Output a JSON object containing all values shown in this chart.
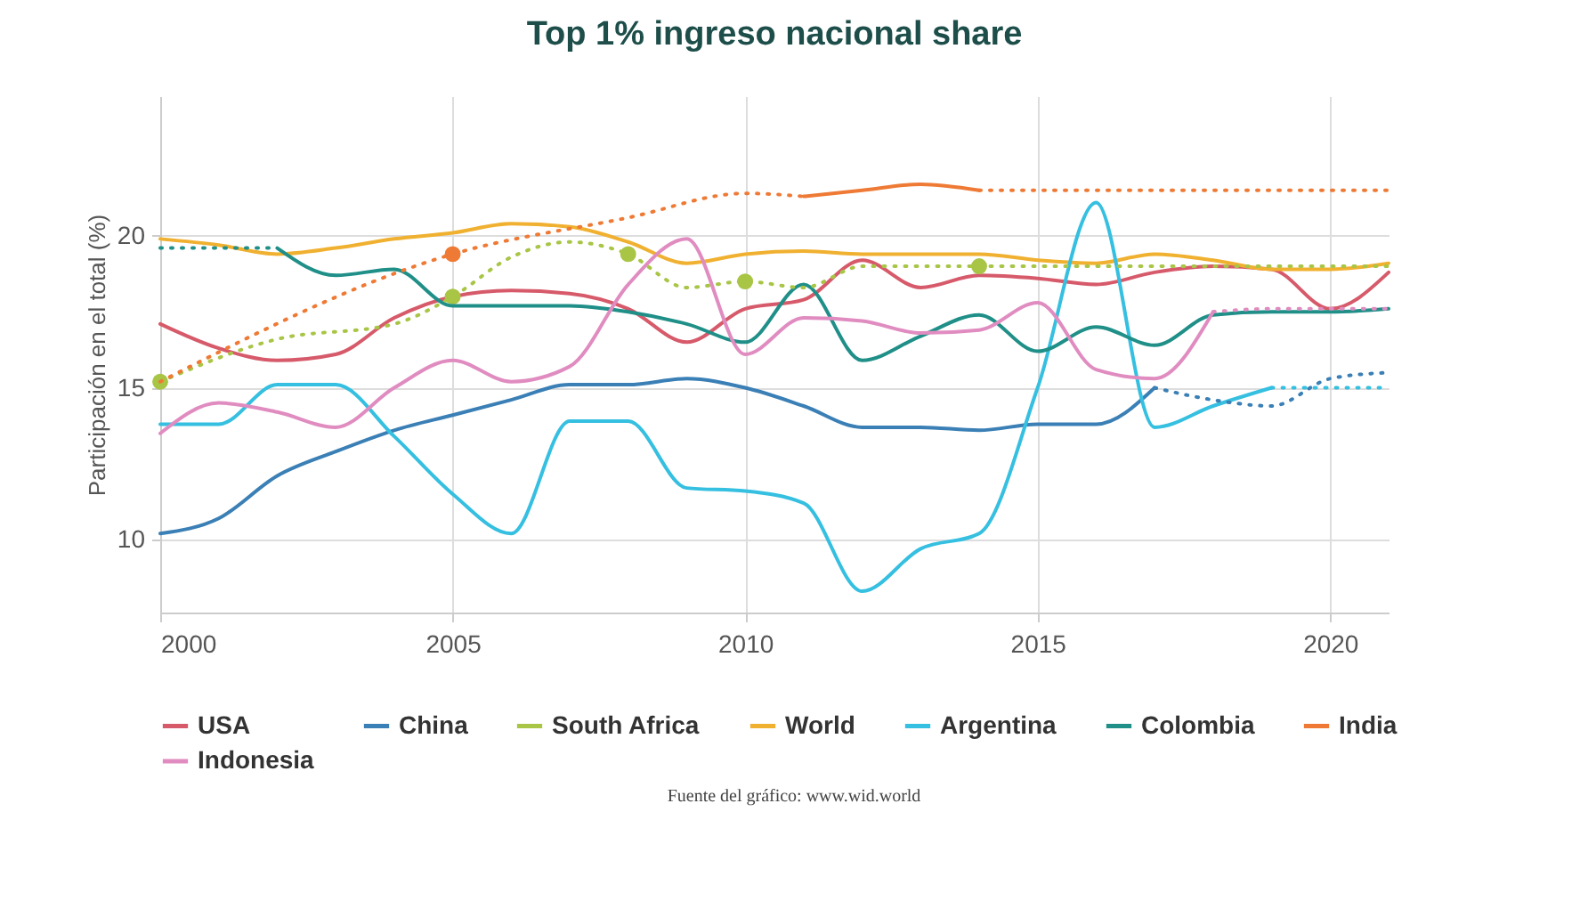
{
  "chart_data": {
    "type": "line",
    "title": "Top 1% ingreso nacional share",
    "ylabel": "Participación en el total (%)",
    "xlim": [
      2000,
      2021
    ],
    "ylim": [
      7.6,
      24.6
    ],
    "xticks": [
      2000,
      2005,
      2010,
      2015,
      2020
    ],
    "yticks": [
      10,
      15,
      20
    ],
    "grid": true,
    "legend": "bottom",
    "annotations": [
      "Fuente del gráfico: www.wid.world"
    ],
    "series": [
      {
        "name": "USA",
        "color": "#d65a6a",
        "line_style": "solid",
        "x": [
          2000,
          2001,
          2002,
          2003,
          2004,
          2005,
          2006,
          2007,
          2008,
          2009,
          2010,
          2011,
          2012,
          2013,
          2014,
          2015,
          2016,
          2017,
          2018,
          2019,
          2020,
          2021
        ],
        "values": [
          17.1,
          16.3,
          15.9,
          16.1,
          17.3,
          18.0,
          18.2,
          18.1,
          17.6,
          16.5,
          17.6,
          17.9,
          19.2,
          18.3,
          18.7,
          18.6,
          18.4,
          18.8,
          19.0,
          18.9,
          17.6,
          18.8
        ]
      },
      {
        "name": "China",
        "color": "#3a7fb5",
        "line_style": "solid",
        "x": [
          2000,
          2001,
          2002,
          2003,
          2004,
          2005,
          2006,
          2007,
          2008,
          2009,
          2010,
          2011,
          2012,
          2013,
          2014,
          2015,
          2016,
          2017
        ],
        "values": [
          10.2,
          10.7,
          12.1,
          12.9,
          13.6,
          14.1,
          14.6,
          15.1,
          15.1,
          15.3,
          15.0,
          14.4,
          13.7,
          13.7,
          13.6,
          13.8,
          13.8,
          15.0
        ]
      },
      {
        "name": "South Africa",
        "type": "scatter",
        "marker": "circle",
        "color": "#a8c545",
        "x": [
          2000,
          2005,
          2008,
          2010,
          2014
        ],
        "values": [
          15.2,
          18.0,
          19.4,
          18.5,
          19.0
        ]
      },
      {
        "name": "World",
        "color": "#f0b030",
        "line_style": "solid",
        "x": [
          2000,
          2001,
          2002,
          2003,
          2004,
          2005,
          2006,
          2007,
          2008,
          2009,
          2010,
          2011,
          2012,
          2013,
          2014,
          2015,
          2016,
          2017,
          2018,
          2019,
          2020,
          2021
        ],
        "values": [
          19.9,
          19.7,
          19.4,
          19.6,
          19.9,
          20.1,
          20.4,
          20.3,
          19.8,
          19.1,
          19.4,
          19.5,
          19.4,
          19.4,
          19.4,
          19.2,
          19.1,
          19.4,
          19.2,
          18.9,
          18.9,
          19.1
        ]
      },
      {
        "name": "Argentina",
        "color": "#35bfe0",
        "line_style": "solid",
        "x": [
          2000,
          2001,
          2002,
          2003,
          2004,
          2005,
          2006,
          2007,
          2008,
          2009,
          2010,
          2011,
          2012,
          2013,
          2014,
          2015,
          2016,
          2017,
          2018,
          2019
        ],
        "values": [
          13.8,
          13.8,
          15.1,
          15.1,
          13.4,
          11.5,
          10.2,
          13.9,
          13.9,
          11.7,
          11.6,
          11.2,
          8.3,
          9.7,
          10.2,
          15.0,
          21.1,
          13.7,
          14.4,
          15.0
        ]
      },
      {
        "name": "Colombia",
        "color": "#1f8f88",
        "line_style": "solid",
        "x": [
          2002,
          2003,
          2004,
          2005,
          2006,
          2007,
          2008,
          2009,
          2010,
          2011,
          2012,
          2013,
          2014,
          2015,
          2016,
          2017,
          2018,
          2019,
          2020,
          2021
        ],
        "values": [
          19.6,
          18.7,
          18.9,
          17.7,
          17.7,
          17.7,
          17.5,
          17.1,
          16.5,
          18.4,
          15.9,
          16.7,
          17.4,
          16.2,
          17.0,
          16.4,
          17.4,
          17.5,
          17.5,
          17.6
        ]
      },
      {
        "name": "India",
        "color": "#ee7a35",
        "line_style": "solid",
        "x": [
          2011,
          2012,
          2013,
          2014
        ],
        "values": [
          21.3,
          21.5,
          21.7,
          21.5
        ]
      },
      {
        "name": "Indonesia",
        "color": "#e08cc0",
        "line_style": "solid",
        "x": [
          2000,
          2001,
          2002,
          2003,
          2004,
          2005,
          2006,
          2007,
          2008,
          2009,
          2010,
          2011,
          2012,
          2013,
          2014,
          2015,
          2016,
          2017,
          2018
        ],
        "values": [
          13.5,
          14.5,
          14.2,
          13.7,
          15.0,
          15.9,
          15.2,
          15.7,
          18.4,
          19.9,
          16.1,
          17.3,
          17.2,
          16.8,
          16.9,
          17.8,
          15.6,
          15.3,
          17.5
        ]
      },
      {
        "color": "#a8c545",
        "line_style": "dotted",
        "x": [
          2000,
          2002,
          2004,
          2005,
          2006,
          2007,
          2008,
          2009,
          2010,
          2011,
          2012,
          2014,
          2021
        ],
        "values": [
          15.2,
          16.6,
          17.1,
          18.0,
          19.3,
          19.8,
          19.4,
          18.3,
          18.5,
          18.3,
          19.0,
          19.0,
          19.0
        ]
      },
      {
        "color": "#ee7a35",
        "line_style": "dotted",
        "x": [
          2000,
          2005,
          2008,
          2010,
          2011
        ],
        "values": [
          15.2,
          19.4,
          20.6,
          21.4,
          21.3
        ]
      },
      {
        "color": "#ee7a35",
        "line_style": "dotted",
        "x": [
          2014,
          2021
        ],
        "values": [
          21.5,
          21.5
        ]
      },
      {
        "color": "#ee7a35",
        "type": "scatter",
        "marker": "circle",
        "x": [
          2005
        ],
        "values": [
          19.4
        ]
      },
      {
        "color": "#3a7fb5",
        "line_style": "dotted",
        "x": [
          2017,
          2018,
          2019,
          2020,
          2021
        ],
        "values": [
          15.0,
          14.6,
          14.4,
          15.3,
          15.5
        ]
      },
      {
        "color": "#35bfe0",
        "line_style": "dotted",
        "x": [
          2019,
          2020,
          2021
        ],
        "values": [
          15.0,
          15.0,
          15.0
        ]
      },
      {
        "color": "#1f8f88",
        "line_style": "dotted",
        "x": [
          2000,
          2001,
          2002
        ],
        "values": [
          19.6,
          19.6,
          19.6
        ]
      },
      {
        "color": "#e08cc0",
        "line_style": "dotted",
        "x": [
          2018,
          2019,
          2020,
          2021
        ],
        "values": [
          17.5,
          17.6,
          17.6,
          17.6
        ]
      }
    ]
  }
}
